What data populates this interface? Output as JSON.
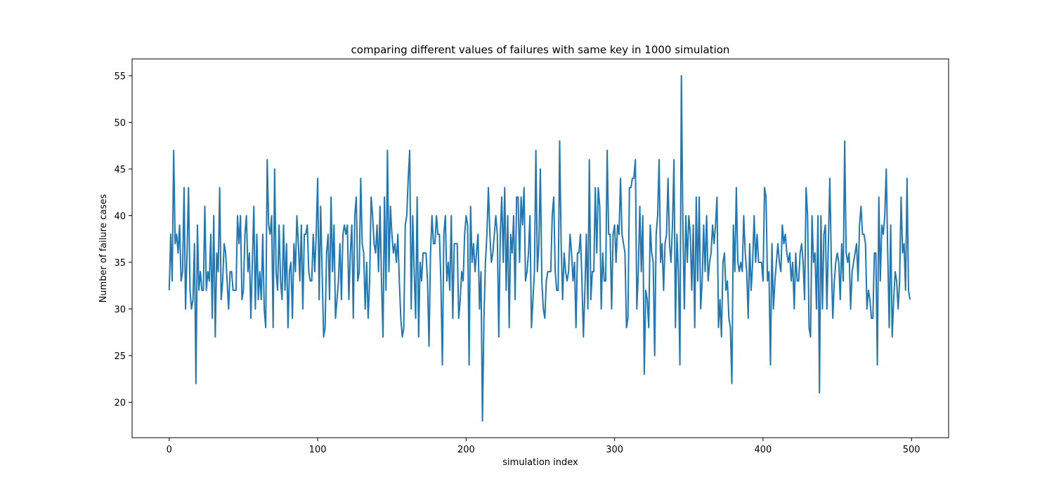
{
  "chart_data": {
    "type": "line",
    "title": "comparing different values of failures with same key in 1000 simulation",
    "xlabel": "simulation index",
    "ylabel": "Number of failure cases",
    "xlim": [
      -25,
      525
    ],
    "ylim": [
      16.2,
      56.8
    ],
    "xticks": [
      0,
      100,
      200,
      300,
      400,
      500
    ],
    "yticks": [
      20,
      25,
      30,
      35,
      40,
      45,
      50,
      55
    ],
    "grid": false,
    "legend": "none",
    "series": [
      {
        "color": "#1f77b4",
        "x_start": 0,
        "x_step": 1,
        "values": [
          32,
          38,
          33,
          47,
          37,
          38,
          36,
          39,
          33,
          34,
          43,
          30,
          36,
          43,
          32,
          30,
          31,
          37,
          22,
          39,
          32,
          34,
          32,
          32,
          41,
          32,
          34,
          33,
          38,
          29,
          40,
          27,
          36,
          34,
          43,
          31,
          33,
          37,
          36,
          33,
          30,
          34,
          34,
          32,
          32,
          32,
          40,
          37,
          40,
          31,
          32,
          38,
          40,
          34,
          36,
          29,
          35,
          41,
          30,
          38,
          31,
          34,
          31,
          38,
          30,
          28,
          46,
          39,
          38,
          40,
          28,
          45,
          34,
          32,
          39,
          33,
          31,
          39,
          32,
          37,
          28,
          34,
          35,
          29,
          37,
          34,
          40,
          37,
          33,
          39,
          30,
          38,
          38,
          39,
          34,
          33,
          33,
          38,
          34,
          38,
          44,
          31,
          41,
          34,
          27,
          28,
          36,
          38,
          31,
          42,
          34,
          39,
          29,
          31,
          33,
          37,
          31,
          38,
          39,
          38,
          39,
          31,
          36,
          39,
          29,
          40,
          42,
          33,
          34,
          44,
          37,
          36,
          30,
          35,
          29,
          33,
          42,
          40,
          37,
          36,
          39,
          34,
          41,
          33,
          27,
          42,
          32,
          47,
          34,
          41,
          38,
          36,
          37,
          35,
          38,
          33,
          29,
          27,
          28,
          39,
          40,
          44,
          47,
          30,
          40,
          34,
          29,
          42,
          27,
          35,
          33,
          36,
          36,
          36,
          33,
          26,
          36,
          40,
          37,
          37,
          40,
          38,
          38,
          33,
          24,
          38,
          40,
          33,
          35,
          32,
          40,
          29,
          37,
          37,
          37,
          29,
          31,
          34,
          33,
          38,
          40,
          39,
          24,
          41,
          35,
          37,
          34,
          36,
          38,
          30,
          34,
          18,
          29,
          35,
          38,
          43,
          38,
          35,
          36,
          38,
          40,
          38,
          27,
          38,
          42,
          35,
          43,
          32,
          40,
          28,
          38,
          36,
          40,
          31,
          42,
          42,
          35,
          42,
          39,
          43,
          33,
          34,
          36,
          40,
          28,
          31,
          34,
          47,
          34,
          37,
          45,
          33,
          30,
          29,
          33,
          34,
          34,
          34,
          40,
          42,
          34,
          32,
          32,
          48,
          37,
          31,
          36,
          34,
          33,
          34,
          38,
          36,
          33,
          35,
          28,
          36,
          36,
          38,
          33,
          27,
          32,
          38,
          30,
          46,
          31,
          34,
          34,
          43,
          36,
          43,
          41,
          30,
          36,
          33,
          33,
          47,
          38,
          38,
          30,
          38,
          39,
          35,
          39,
          38,
          44,
          38,
          37,
          36,
          28,
          29,
          43,
          43,
          44,
          44,
          46,
          30,
          34,
          41,
          34,
          40,
          23,
          32,
          31,
          28,
          39,
          36,
          35,
          25,
          38,
          40,
          46,
          35,
          37,
          32,
          37,
          38,
          44,
          37,
          35,
          39,
          46,
          28,
          38,
          34,
          24,
          55,
          39,
          30,
          40,
          35,
          40,
          38,
          32,
          39,
          28,
          42,
          33,
          42,
          30,
          33,
          39,
          34,
          40,
          33,
          35,
          36,
          39,
          37,
          39,
          42,
          28,
          31,
          27,
          35,
          36,
          32,
          33,
          29,
          28,
          22,
          39,
          34,
          43,
          35,
          34,
          35,
          34,
          40,
          36,
          34,
          29,
          37,
          32,
          35,
          40,
          35,
          38,
          35,
          35,
          35,
          33,
          43,
          42,
          33,
          34,
          24,
          37,
          30,
          33,
          35,
          37,
          35,
          34,
          39,
          37,
          38,
          36,
          35,
          36,
          33,
          35,
          30,
          36,
          33,
          33,
          36,
          37,
          35,
          31,
          43,
          40,
          28,
          27,
          40,
          35,
          36,
          30,
          40,
          21,
          40,
          30,
          38,
          39,
          30,
          37,
          44,
          35,
          29,
          33,
          35,
          36,
          35,
          31,
          37,
          33,
          48,
          36,
          35,
          36,
          30,
          34,
          35,
          36,
          37,
          33,
          39,
          41,
          38,
          38,
          37,
          30,
          32,
          31,
          29,
          29,
          36,
          36,
          24,
          42,
          33,
          39,
          38,
          40,
          45,
          36,
          28,
          39,
          27,
          31,
          34,
          33,
          30,
          33,
          42,
          36,
          37,
          32,
          44,
          32,
          31
        ]
      }
    ]
  }
}
